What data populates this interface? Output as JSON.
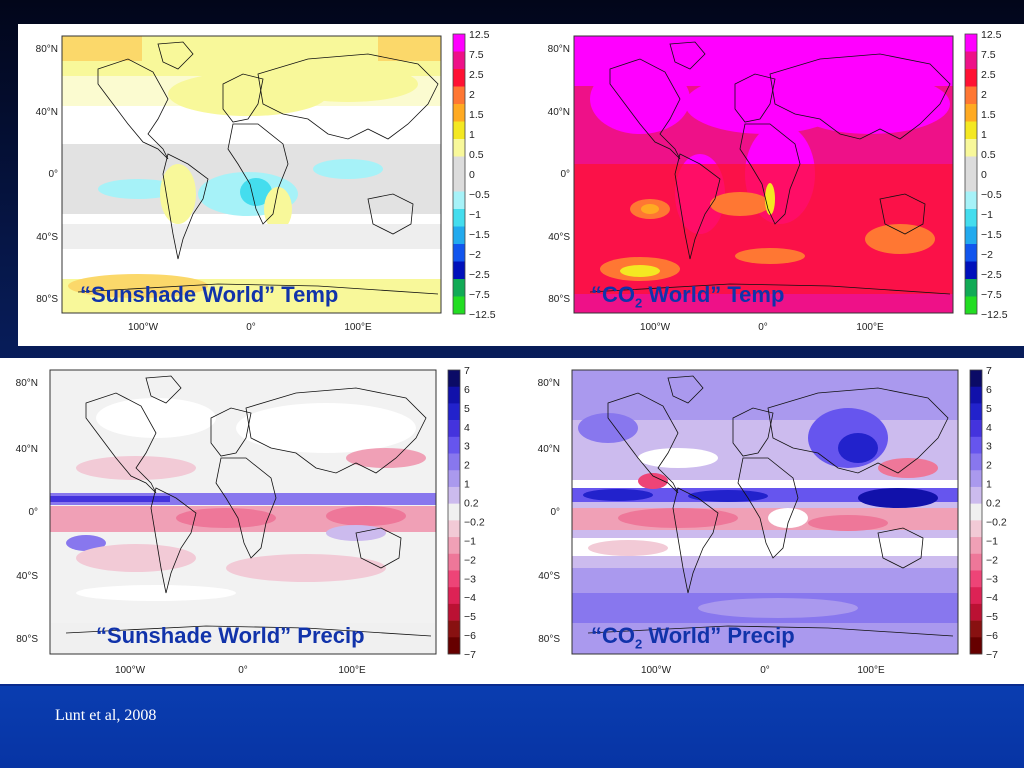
{
  "citation": "Lunt et al, 2008",
  "map_axes": {
    "lat_labels": [
      "80°N",
      "40°N",
      "0°",
      "40°S",
      "80°S"
    ],
    "lon_labels": [
      "100°W",
      "0°",
      "100°E"
    ]
  },
  "temp_colorbar": {
    "labels": [
      "12.5",
      "7.5",
      "2.5",
      "2",
      "1.5",
      "1",
      "0.5",
      "0",
      "−0.5",
      "−1",
      "−1.5",
      "−2",
      "−2.5",
      "−7.5",
      "−12.5"
    ],
    "colors": [
      "#ff00ff",
      "#ee1188",
      "#ff1133",
      "#ff7733",
      "#ffaa22",
      "#f4e822",
      "#f8f89a",
      "#dcdcdc",
      "#dcdcdc",
      "#a6f2f8",
      "#44ddee",
      "#22aaee",
      "#1155ee",
      "#0011bb",
      "#11aa55",
      "#22dd22"
    ]
  },
  "precip_colorbar": {
    "labels": [
      "7",
      "6",
      "5",
      "4",
      "3",
      "2",
      "1",
      "0.2",
      "−0.2",
      "−1",
      "−2",
      "−3",
      "−4",
      "−5",
      "−6",
      "−7"
    ],
    "colors": [
      "#0b0b66",
      "#1111aa",
      "#2222cc",
      "#4433dd",
      "#6655ee",
      "#8877ee",
      "#aa99ee",
      "#ccbbee",
      "#f0f0f0",
      "#f2cad6",
      "#f0a0b6",
      "#ee7799",
      "#ee4477",
      "#dd2255",
      "#bb1133",
      "#881111",
      "#660000"
    ]
  },
  "panels": {
    "sunshade_temp": {
      "caption": "“Sunshade World” Temp"
    },
    "co2_temp": {
      "caption_pre": "“CO",
      "caption_sub": "2",
      "caption_post": " World” Temp"
    },
    "sunshade_precip": {
      "caption": "“Sunshade World” Precip"
    },
    "co2_precip": {
      "caption_pre": "“CO",
      "caption_sub": "2",
      "caption_post": " World” Precip"
    }
  }
}
